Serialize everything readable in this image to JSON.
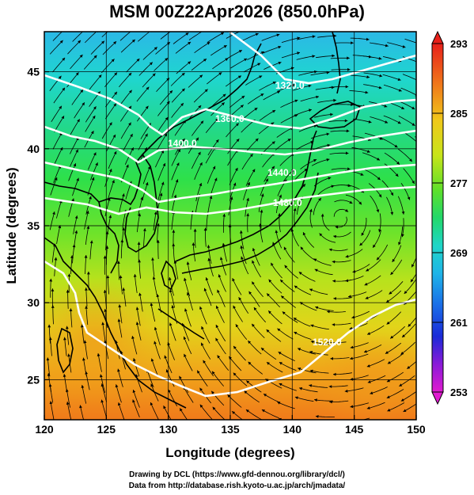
{
  "title": "MSM 00Z22Apr2026 (850.0hPa)",
  "map": {
    "xlabel": "Longitude (degrees)",
    "ylabel": "Latitude  (degrees)",
    "lon_range": [
      120,
      150
    ],
    "lat_range": [
      22.4,
      47.6
    ],
    "lon_ticks": [
      "120",
      "125",
      "130",
      "135",
      "140",
      "145",
      "150"
    ],
    "lat_ticks": [
      "25",
      "30",
      "35",
      "40",
      "45"
    ],
    "lon_tick_values": [
      120,
      125,
      130,
      135,
      140,
      145,
      150
    ],
    "lat_tick_values": [
      25,
      30,
      35,
      40,
      45
    ],
    "grid_lon": [
      120,
      125,
      130,
      135,
      140,
      145,
      150
    ],
    "grid_lat": [
      25,
      30,
      35,
      40,
      45
    ],
    "contour_labels": [
      "1320.0",
      "1360.0",
      "1400.0",
      "1440.0",
      "1480.0",
      "1520.0"
    ]
  },
  "colorbar": {
    "min": 253,
    "max": 293,
    "ticks": [
      "293",
      "285",
      "277",
      "269",
      "261",
      "253"
    ],
    "tick_values": [
      293,
      285,
      277,
      269,
      261,
      253
    ]
  },
  "credit": {
    "line1": "Drawing by DCL (https://www.gfd-dennou.org/library/dcl/)",
    "line2": "Data from http://database.rish.kyoto-u.ac.jp/arch/jmadata/"
  }
}
